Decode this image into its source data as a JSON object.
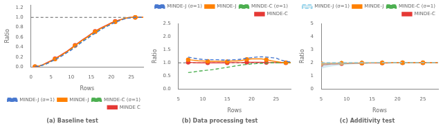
{
  "chart_data": [
    {
      "type": "line",
      "title": "(a) Baseline test",
      "x_label": "Rows",
      "y_label": "Ratio",
      "xlim": [
        0,
        28
      ],
      "ylim": [
        0,
        1.25
      ],
      "xticks": [
        0,
        5,
        10,
        15,
        20,
        25
      ],
      "yticks": [
        {
          "value": 0,
          "label": "0.0"
        },
        0.2,
        0.4,
        0.6,
        0.8,
        {
          "value": 1,
          "label": "1.0"
        },
        1.2
      ],
      "grid": false,
      "legend": "lower right",
      "hline": 1.0,
      "x": [
        1,
        2,
        3,
        4,
        5,
        6,
        7,
        8,
        9,
        10,
        11,
        12,
        13,
        14,
        15,
        16,
        17,
        18,
        19,
        20,
        21,
        22,
        23,
        24,
        25,
        26,
        27,
        28
      ],
      "series": [
        {
          "name": "MINDE-J (σ=1)",
          "color": "#4878CF",
          "line_style": "dashed",
          "values": [
            0.01,
            0.02,
            0.04,
            0.07,
            0.11,
            0.15,
            0.19,
            0.24,
            0.29,
            0.34,
            0.4,
            0.46,
            0.52,
            0.57,
            0.63,
            0.68,
            0.73,
            0.78,
            0.82,
            0.86,
            0.9,
            0.93,
            0.96,
            0.98,
            0.99,
            1.0,
            1.0,
            1.0
          ]
        },
        {
          "name": "MINDE-J",
          "color": "#FF8000",
          "line_style": "solid",
          "marker": "circle",
          "values": [
            0.01,
            0.02,
            0.05,
            0.08,
            0.12,
            0.16,
            0.21,
            0.26,
            0.31,
            0.37,
            0.43,
            0.49,
            0.55,
            0.6,
            0.66,
            0.71,
            0.76,
            0.8,
            0.84,
            0.88,
            0.91,
            0.94,
            0.97,
            0.99,
            1.0,
            1.0,
            1.0,
            1.0
          ]
        },
        {
          "name": "MINDE-C (σ=1)",
          "color": "#4CAF50",
          "line_style": "dashed",
          "values": [
            0.01,
            0.02,
            0.04,
            0.07,
            0.11,
            0.15,
            0.2,
            0.25,
            0.3,
            0.36,
            0.41,
            0.47,
            0.53,
            0.58,
            0.64,
            0.69,
            0.74,
            0.79,
            0.83,
            0.87,
            0.91,
            0.94,
            0.97,
            0.99,
            1.0,
            1.0,
            1.0,
            1.0
          ]
        },
        {
          "name": "MINDE C",
          "color": "#E53935",
          "line_style": "solid",
          "marker": "circle",
          "values": [
            0.01,
            0.02,
            0.05,
            0.09,
            0.13,
            0.17,
            0.22,
            0.27,
            0.32,
            0.38,
            0.44,
            0.5,
            0.56,
            0.61,
            0.67,
            0.72,
            0.77,
            0.81,
            0.85,
            0.89,
            0.92,
            0.95,
            0.97,
            0.99,
            1.0,
            1.0,
            1.0,
            1.0
          ]
        }
      ]
    },
    {
      "type": "line",
      "title": "(b) Data processing test",
      "x_label": "Rows",
      "y_label": "Ratio",
      "xlim": [
        5,
        28
      ],
      "ylim": [
        0.0,
        2.5
      ],
      "xticks": [
        5,
        10,
        15,
        20,
        25
      ],
      "yticks": [
        {
          "value": 0,
          "label": "0.0"
        },
        0.5,
        {
          "value": 1,
          "label": "1.0"
        },
        1.5,
        {
          "value": 2,
          "label": "2.0"
        },
        2.5
      ],
      "grid": false,
      "legend": "upper right",
      "hline": 1.0,
      "x": [
        7,
        8,
        9,
        10,
        11,
        12,
        13,
        14,
        15,
        16,
        17,
        18,
        19,
        20,
        21,
        22,
        23,
        24,
        25,
        26,
        27,
        28
      ],
      "series": [
        {
          "name": "MINDE-J (σ=1)",
          "color": "#4878CF",
          "line_style": "dashed",
          "values": [
            1.22,
            1.18,
            1.15,
            1.13,
            1.12,
            1.12,
            1.12,
            1.11,
            1.1,
            1.12,
            1.12,
            1.14,
            1.18,
            1.2,
            1.22,
            1.23,
            1.22,
            1.2,
            1.18,
            1.1,
            1.06,
            1.03
          ]
        },
        {
          "name": "MINDE-J",
          "color": "#FF8000",
          "line_style": "solid",
          "marker": "circle",
          "values": [
            1.12,
            1.1,
            1.08,
            1.07,
            1.06,
            1.06,
            1.06,
            1.06,
            1.05,
            1.07,
            1.07,
            1.09,
            1.13,
            1.15,
            1.15,
            1.15,
            1.12,
            1.08,
            1.05,
            1.02,
            1.01,
            1.01
          ]
        },
        {
          "name": "MINDE-C (σ=1)",
          "color": "#4CAF50",
          "line_style": "dashed",
          "values": [
            0.63,
            0.65,
            0.68,
            0.7,
            0.72,
            0.74,
            0.77,
            0.8,
            0.83,
            0.86,
            0.89,
            0.92,
            0.94,
            0.96,
            0.97,
            0.98,
            0.99,
            1.0,
            1.0,
            1.0,
            1.0,
            1.0
          ]
        },
        {
          "name": "MINDE-C",
          "color": "#E53935",
          "line_style": "solid",
          "marker": "circle",
          "values": [
            1.02,
            1.01,
            1.0,
            1.0,
            1.0,
            1.0,
            1.0,
            1.0,
            1.0,
            1.01,
            1.01,
            1.01,
            1.02,
            1.02,
            1.02,
            1.02,
            1.01,
            1.01,
            1.01,
            1.0,
            1.0,
            1.0
          ]
        }
      ]
    },
    {
      "type": "line",
      "title": "(c) Additivity test",
      "x_label": "Rows",
      "y_label": "Ratio",
      "xlim": [
        5,
        28
      ],
      "ylim": [
        0,
        5
      ],
      "xticks": [
        5,
        10,
        15,
        20,
        25
      ],
      "yticks": [
        0,
        1,
        2,
        3,
        4,
        5
      ],
      "grid": false,
      "legend": "upper right",
      "x": [
        5,
        6,
        7,
        8,
        9,
        10,
        11,
        12,
        13,
        14,
        15,
        16,
        17,
        18,
        19,
        20,
        21,
        22,
        23,
        24,
        25,
        26,
        27,
        28
      ],
      "series": [
        {
          "name": "MINDE-J (σ=1)",
          "color": "#87CEEB",
          "line_style": "dashed",
          "fill_color": "#ADD8E6",
          "fill_lower": [
            1.55,
            1.65,
            1.72,
            1.78,
            1.82,
            1.86,
            1.89,
            1.91,
            1.93,
            1.95,
            1.96,
            1.97,
            1.98,
            1.99,
            1.99,
            2.0,
            2.0,
            2.0,
            2.0,
            2.0,
            2.0,
            2.0,
            2.0,
            2.0
          ],
          "values": [
            2.02,
            2.02,
            2.02,
            2.02,
            2.02,
            2.02,
            2.02,
            2.02,
            2.02,
            2.02,
            2.02,
            2.02,
            2.02,
            2.02,
            2.02,
            2.02,
            2.02,
            2.02,
            2.02,
            2.02,
            2.02,
            2.02,
            2.02,
            2.02
          ]
        },
        {
          "name": "MINDE-J",
          "color": "#FF8000",
          "line_style": "solid",
          "marker": "circle",
          "values": [
            1.95,
            1.96,
            1.97,
            1.97,
            1.98,
            1.98,
            1.99,
            1.99,
            1.99,
            2.0,
            2.0,
            2.0,
            2.0,
            2.0,
            2.01,
            2.01,
            2.01,
            2.01,
            2.01,
            2.01,
            2.01,
            2.01,
            2.01,
            2.01
          ]
        },
        {
          "name": "MINDE-C (σ=1)",
          "color": "#4CAF50",
          "line_style": "dashed",
          "marker": "triangle",
          "values": [
            1.92,
            1.93,
            1.95,
            1.96,
            1.97,
            1.97,
            1.98,
            1.98,
            1.99,
            1.99,
            2.0,
            2.0,
            2.0,
            2.0,
            2.0,
            2.0,
            2.0,
            2.0,
            2.0,
            2.0,
            2.0,
            2.0,
            2.0,
            2.0
          ]
        },
        {
          "name": "MINDE-C",
          "color": "#E53935",
          "line_style": "solid",
          "marker": "circle",
          "values": [
            1.85,
            1.87,
            1.9,
            1.91,
            1.93,
            1.94,
            1.95,
            1.96,
            1.97,
            1.98,
            1.98,
            1.99,
            1.99,
            1.99,
            2.0,
            2.0,
            2.0,
            2.0,
            2.0,
            2.0,
            2.0,
            2.0,
            2.0,
            2.0
          ]
        }
      ]
    }
  ]
}
